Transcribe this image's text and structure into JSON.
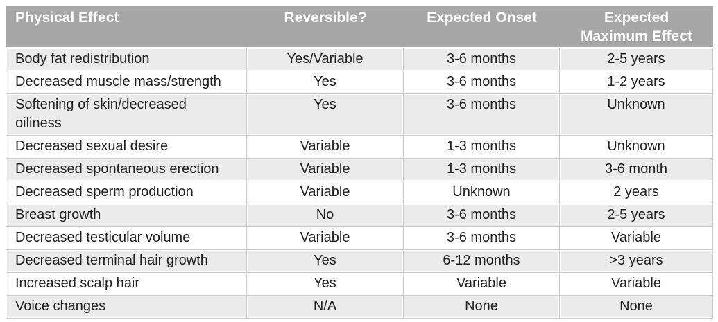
{
  "theme": {
    "header_bg": "#a6a6a6",
    "header_text": "#ffffff",
    "row_shaded_bg": "#ebebeb",
    "row_plain_bg": "#ffffff",
    "body_text": "#212121",
    "border": "#c9c9c9"
  },
  "table": {
    "columns": [
      {
        "label": "Physical Effect"
      },
      {
        "label": "Reversible?"
      },
      {
        "label": "Expected Onset"
      },
      {
        "label": "Expected\nMaximum Effect"
      }
    ],
    "rows": [
      {
        "effect": "Body fat redistribution",
        "reversible": "Yes/Variable",
        "onset": "3-6 months",
        "max_effect": "2-5 years"
      },
      {
        "effect": "Decreased muscle mass/strength",
        "reversible": "Yes",
        "onset": "3-6 months",
        "max_effect": "1-2 years"
      },
      {
        "effect": "Softening of skin/decreased\noiliness",
        "reversible": "Yes",
        "onset": "3-6 months",
        "max_effect": "Unknown"
      },
      {
        "effect": "Decreased sexual desire",
        "reversible": "Variable",
        "onset": "1-3 months",
        "max_effect": "Unknown"
      },
      {
        "effect": "Decreased spontaneous erection",
        "reversible": "Variable",
        "onset": "1-3 months",
        "max_effect": "3-6 month"
      },
      {
        "effect": "Decreased sperm production",
        "reversible": "Variable",
        "onset": "Unknown",
        "max_effect": "2 years"
      },
      {
        "effect": "Breast growth",
        "reversible": "No",
        "onset": "3-6 months",
        "max_effect": "2-5 years"
      },
      {
        "effect": "Decreased testicular volume",
        "reversible": "Variable",
        "onset": "3-6 months",
        "max_effect": "Variable"
      },
      {
        "effect": "Decreased terminal hair growth",
        "reversible": "Yes",
        "onset": "6-12 months",
        "max_effect": ">3 years"
      },
      {
        "effect": "Increased scalp hair",
        "reversible": "Yes",
        "onset": "Variable",
        "max_effect": "Variable"
      },
      {
        "effect": "Voice changes",
        "reversible": "N/A",
        "onset": "None",
        "max_effect": "None"
      }
    ]
  }
}
